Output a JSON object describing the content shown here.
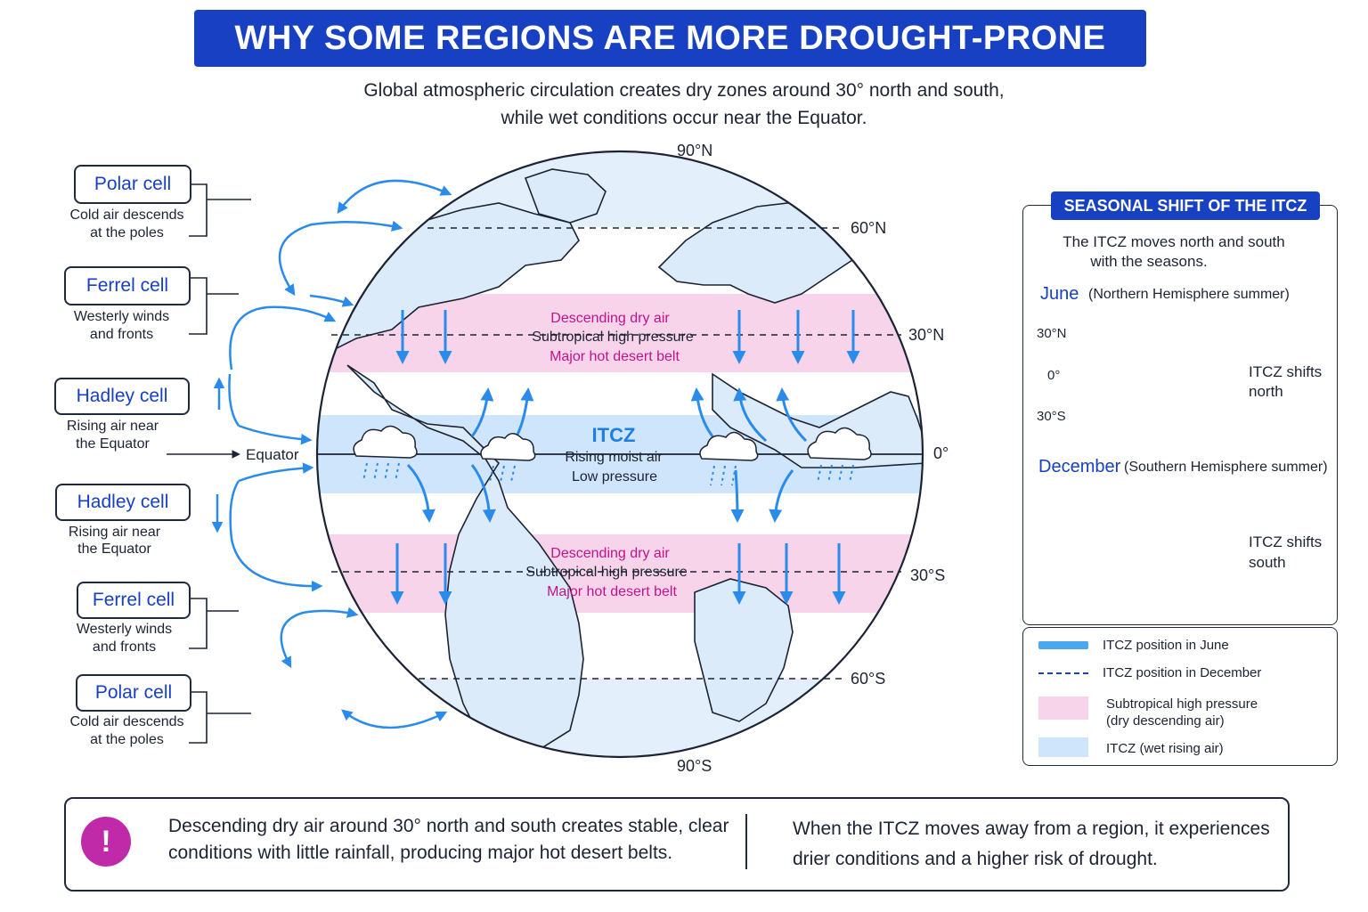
{
  "title": "WHY SOME REGIONS ARE MORE DROUGHT-PRONE",
  "subtitle": {
    "line1": "Global atmospheric circulation creates dry zones around 30° north and south,",
    "line2": "while wet conditions occur near the Equator."
  },
  "latitudes": {
    "n90": "90°N",
    "n60": "60°N",
    "n30": "30°N",
    "eq": "0°",
    "s30": "30°S",
    "s60": "60°S",
    "s90": "90°S"
  },
  "equator_label": "Equator",
  "cells": [
    {
      "name": "Polar cell",
      "desc1": "Cold air descends",
      "desc2": "at the poles"
    },
    {
      "name": "Ferrel cell",
      "desc1": "Westerly winds",
      "desc2": "and fronts"
    },
    {
      "name": "Hadley cell",
      "desc1": "Rising air near",
      "desc2": "the Equator"
    },
    {
      "name": "Hadley cell",
      "desc1": "Rising air near",
      "desc2": "the Equator"
    },
    {
      "name": "Ferrel cell",
      "desc1": "Westerly winds",
      "desc2": "and fronts"
    },
    {
      "name": "Polar cell",
      "desc1": "Cold air descends",
      "desc2": "at the poles"
    }
  ],
  "north_belt": {
    "line1": "Descending dry air",
    "line2": "Subtropical high pressure",
    "line3": "Major hot desert belt"
  },
  "south_belt": {
    "line1": "Descending dry air",
    "line2": "Subtropical high pressure",
    "line3": "Major hot desert belt"
  },
  "itcz": {
    "label": "ITCZ",
    "line1": "Rising moist air",
    "line2": "Low pressure"
  },
  "seasonal": {
    "title": "SEASONAL SHIFT OF THE ITCZ",
    "desc1": "The ITCZ moves north and south",
    "desc2": "with the seasons.",
    "june_label": "June",
    "june_note": "(Northern Hemisphere summer)",
    "december_label": "December",
    "december_note": "(Southern Hemisphere summer)",
    "lat_30n": "30°N",
    "lat_0": "0°",
    "lat_30s": "30°S",
    "shift_north_1": "ITCZ shifts",
    "shift_north_2": "north",
    "shift_south_1": "ITCZ shifts",
    "shift_south_2": "south"
  },
  "legend": [
    {
      "label": "ITCZ position in June"
    },
    {
      "label": "ITCZ position in December"
    },
    {
      "label1": "Subtropical high pressure",
      "label2": "(dry descending air)"
    },
    {
      "label": "ITCZ (wet rising air)"
    }
  ],
  "bottom": {
    "left1": "Descending dry air around 30° north and south creates stable, clear",
    "left2": "conditions with little rainfall, producing major hot desert belts.",
    "right1": "When the ITCZ moves away from a region, it experiences",
    "right2": "drier conditions and a higher risk of drought.",
    "alert_symbol": "!"
  },
  "colors": {
    "brand_blue": "#1740c2",
    "arrow_blue": "#2a8bea",
    "dry_pink": "#f7d4ea",
    "wet_blue": "#cfe5fb",
    "magenta_text": "#c0148a",
    "alert_magenta": "#c02aa8"
  }
}
